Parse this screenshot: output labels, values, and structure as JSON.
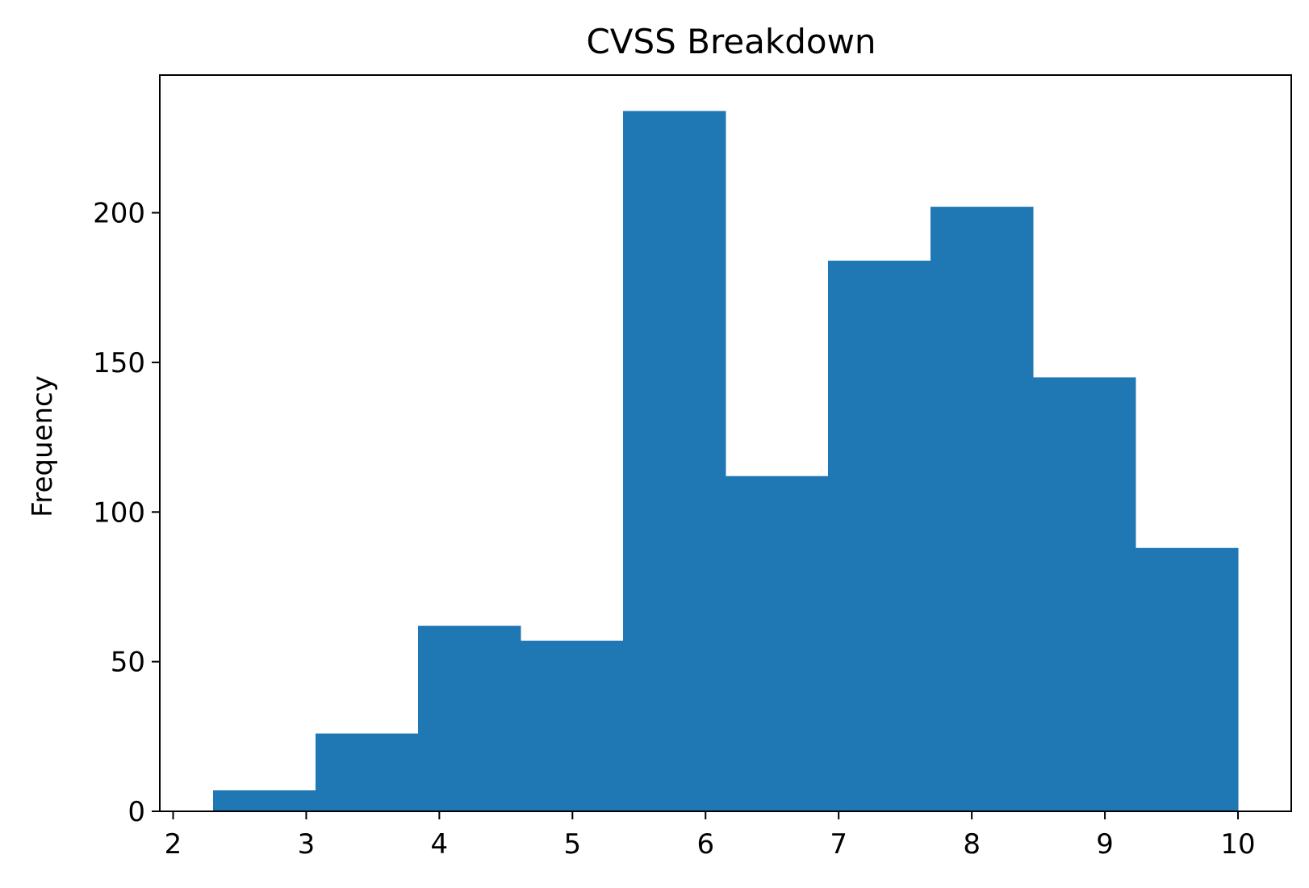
{
  "chart_data": {
    "type": "bar",
    "title": "CVSS Breakdown",
    "xlabel": "",
    "ylabel": "Frequency",
    "bin_edges": [
      2.3,
      3.07,
      3.84,
      4.61,
      5.38,
      6.15,
      6.92,
      7.69,
      8.46,
      9.23,
      10.0
    ],
    "values": [
      7,
      26,
      62,
      57,
      234,
      112,
      184,
      202,
      145,
      88
    ],
    "xlim": [
      1.9,
      10.4
    ],
    "ylim": [
      0,
      246
    ],
    "xticks": [
      2,
      3,
      4,
      5,
      6,
      7,
      8,
      9,
      10
    ],
    "yticks": [
      0,
      50,
      100,
      150,
      200
    ],
    "bar_color": "#1f77b4",
    "grid": false,
    "legend": "none"
  }
}
